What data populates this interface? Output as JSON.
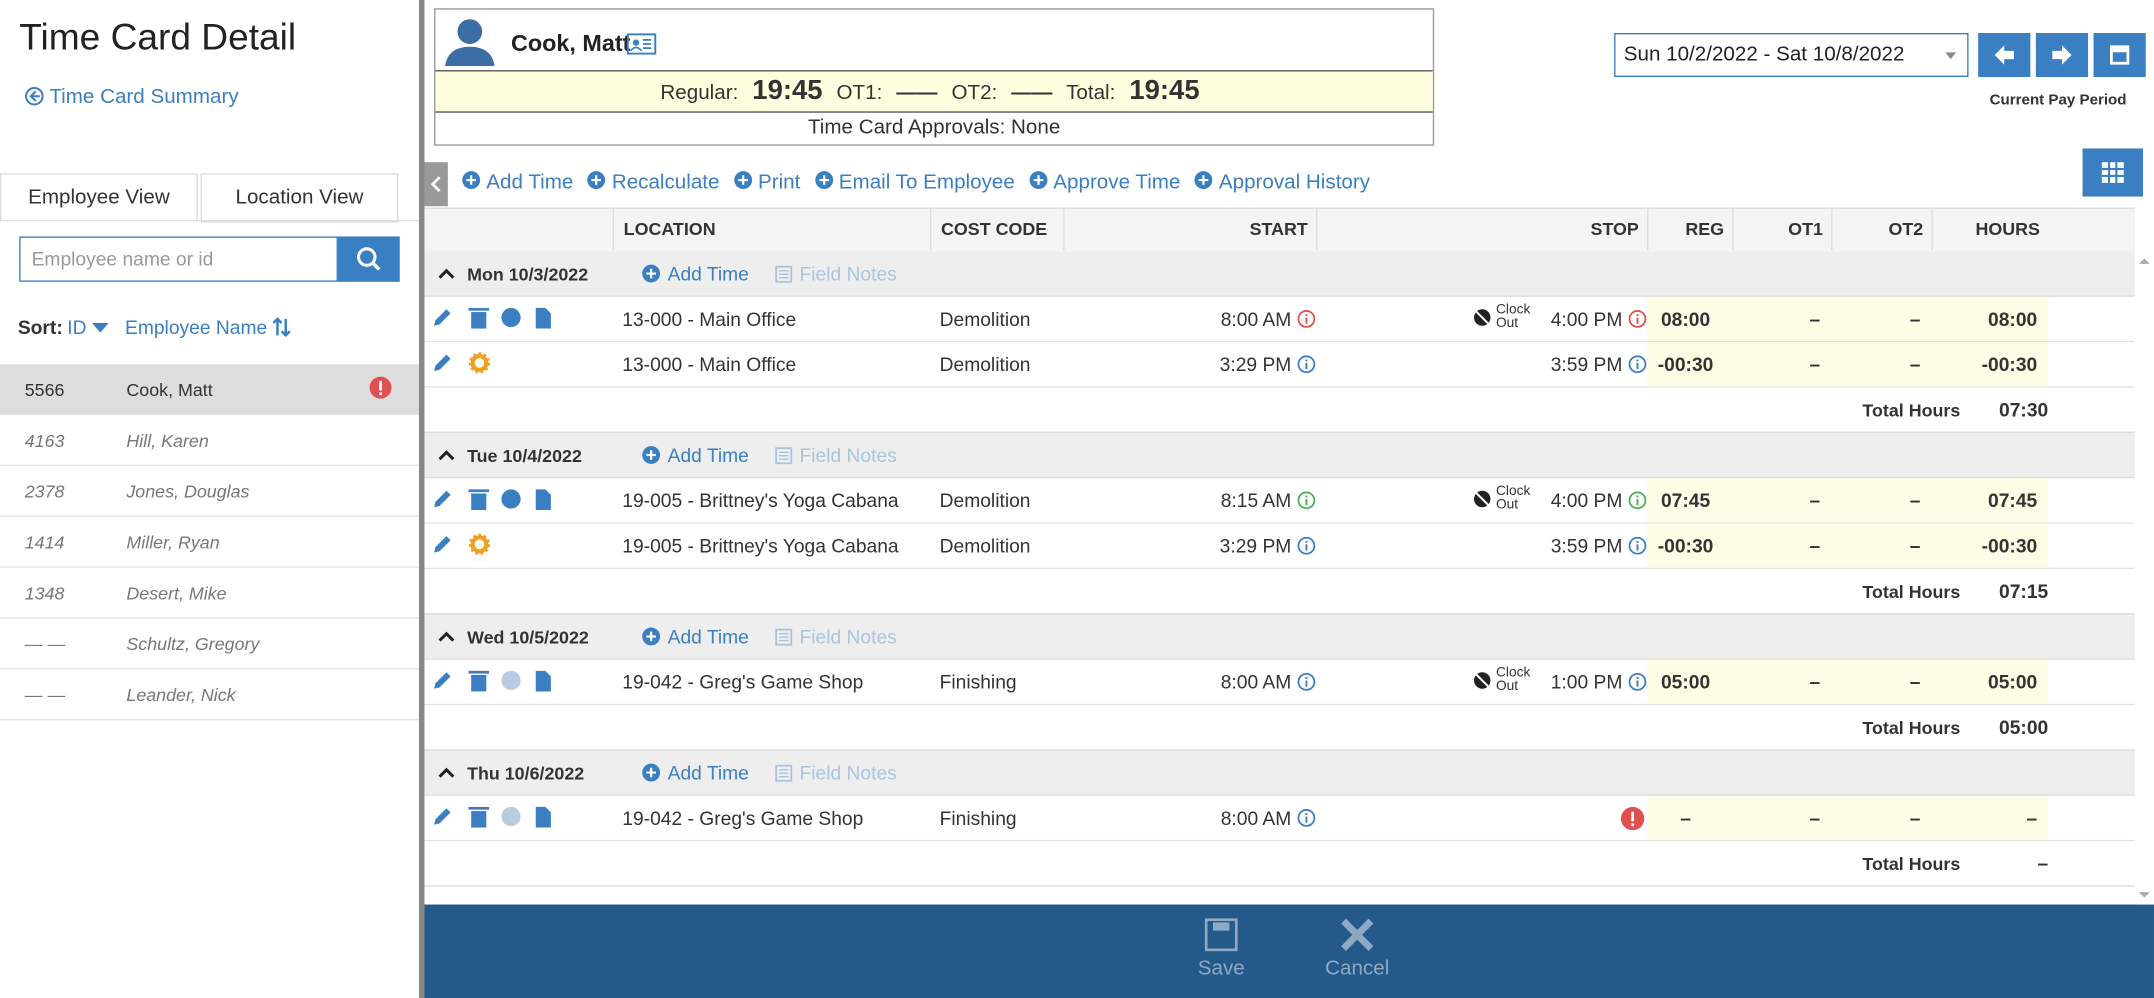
{
  "page": {
    "title": "Time Card Detail",
    "back_link": "Time Card Summary"
  },
  "sidebar": {
    "tabs": [
      "Employee View",
      "Location View"
    ],
    "search_placeholder": "Employee name or id",
    "sort_label": "Sort:",
    "sort_options": [
      "ID",
      "Employee Name"
    ],
    "employees": [
      {
        "id": "5566",
        "name": "Cook, Matt"
      },
      {
        "id": "4163",
        "name": "Hill, Karen"
      },
      {
        "id": "2378",
        "name": "Jones, Douglas"
      },
      {
        "id": "1414",
        "name": "Miller, Ryan"
      },
      {
        "id": "1348",
        "name": "Desert, Mike"
      },
      {
        "id": "— —",
        "name": "Schultz, Gregory"
      },
      {
        "id": "— —",
        "name": "Leander, Nick"
      }
    ]
  },
  "employee_card": {
    "name": "Cook, Matt",
    "regular_label": "Regular:",
    "regular": "19:45",
    "ot1_label": "OT1:",
    "ot1": "——",
    "ot2_label": "OT2:",
    "ot2": "——",
    "total_label": "Total:",
    "total": "19:45",
    "approvals": "Time Card Approvals: None"
  },
  "pay_period": {
    "range": "Sun 10/2/2022 - Sat 10/8/2022",
    "label": "Current Pay Period"
  },
  "toolbar": [
    "Add Time",
    "Recalculate",
    "Print",
    "Email To Employee",
    "Approve Time",
    "Approval History"
  ],
  "table": {
    "columns": [
      "LOCATION",
      "COST CODE",
      "START",
      "STOP",
      "REG",
      "OT1",
      "OT2",
      "HOURS"
    ],
    "days": [
      {
        "date": "Mon 10/3/2022",
        "add_time": "Add Time",
        "field_notes": "Field Notes",
        "rows": [
          {
            "location": "13-000 - Main Office",
            "cost_code": "Demolition",
            "start": "8:00 AM",
            "clock_out": "Clock Out",
            "stop": "4:00 PM",
            "reg": "08:00",
            "ot1": "–",
            "ot2": "–",
            "hours": "08:00"
          },
          {
            "location": "13-000 - Main Office",
            "cost_code": "Demolition",
            "start": "3:29 PM",
            "stop": "3:59 PM",
            "reg": "-00:30",
            "ot1": "–",
            "ot2": "–",
            "hours": "-00:30"
          }
        ],
        "total_label": "Total Hours",
        "total": "07:30"
      },
      {
        "date": "Tue 10/4/2022",
        "add_time": "Add Time",
        "field_notes": "Field Notes",
        "rows": [
          {
            "location": "19-005 - Brittney's Yoga Cabana",
            "cost_code": "Demolition",
            "start": "8:15 AM",
            "clock_out": "Clock Out",
            "stop": "4:00 PM",
            "reg": "07:45",
            "ot1": "–",
            "ot2": "–",
            "hours": "07:45"
          },
          {
            "location": "19-005 - Brittney's Yoga Cabana",
            "cost_code": "Demolition",
            "start": "3:29 PM",
            "stop": "3:59 PM",
            "reg": "-00:30",
            "ot1": "–",
            "ot2": "–",
            "hours": "-00:30"
          }
        ],
        "total_label": "Total Hours",
        "total": "07:15"
      },
      {
        "date": "Wed 10/5/2022",
        "add_time": "Add Time",
        "field_notes": "Field Notes",
        "rows": [
          {
            "location": "19-042 - Greg's Game Shop",
            "cost_code": "Finishing",
            "start": "8:00 AM",
            "clock_out": "Clock Out",
            "stop": "1:00 PM",
            "reg": "05:00",
            "ot1": "–",
            "ot2": "–",
            "hours": "05:00"
          }
        ],
        "total_label": "Total Hours",
        "total": "05:00"
      },
      {
        "date": "Thu 10/6/2022",
        "add_time": "Add Time",
        "field_notes": "Field Notes",
        "rows": [
          {
            "location": "19-042 - Greg's Game Shop",
            "cost_code": "Finishing",
            "start": "8:00 AM",
            "reg": "–",
            "ot1": "–",
            "ot2": "–",
            "hours": "–"
          }
        ],
        "total_label": "Total Hours",
        "total": "–"
      }
    ]
  },
  "footer": {
    "save": "Save",
    "cancel": "Cancel"
  }
}
